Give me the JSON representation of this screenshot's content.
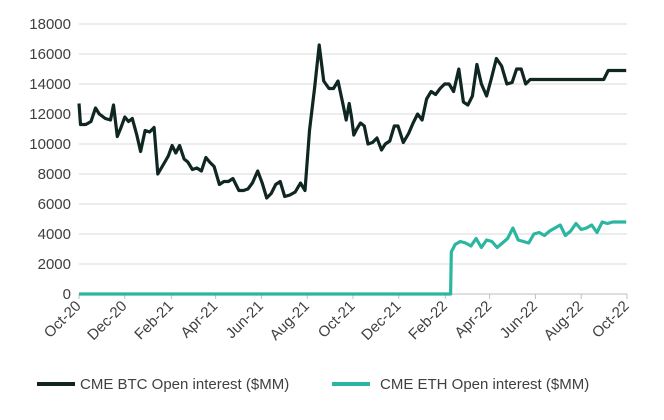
{
  "chart_data": {
    "type": "line",
    "title": "",
    "xlabel": "",
    "ylabel": "",
    "ylim": [
      0,
      18000
    ],
    "yticks": [
      0,
      2000,
      4000,
      6000,
      8000,
      10000,
      12000,
      14000,
      16000,
      18000
    ],
    "ytick_labels": [
      "0",
      "2000",
      "4000",
      "6000",
      "8000",
      "10000",
      "12000",
      "14000",
      "16000",
      "18000"
    ],
    "xlim": [
      "2020-10-01",
      "2022-10-01"
    ],
    "xticks": [
      "2020-10-01",
      "2020-12-01",
      "2021-02-01",
      "2021-04-01",
      "2021-06-01",
      "2021-08-01",
      "2021-10-01",
      "2021-12-01",
      "2022-02-01",
      "2022-04-01",
      "2022-06-01",
      "2022-08-01",
      "2022-10-01"
    ],
    "xtick_labels": [
      "Oct-20",
      "Dec-20",
      "Feb-21",
      "Apr-21",
      "Jun-21",
      "Aug-21",
      "Oct-21",
      "Dec-21",
      "Feb-22",
      "Apr-22",
      "Jun-22",
      "Aug-22",
      "Oct-22"
    ],
    "grid": "horizontal",
    "legend_position": "bottom",
    "series": [
      {
        "name": "CME BTC Open interest ($MM)",
        "color": "#0f2622",
        "x": [
          "2020-10-01",
          "2020-10-03",
          "2020-10-10",
          "2020-10-17",
          "2020-10-23",
          "2020-10-28",
          "2020-11-05",
          "2020-11-12",
          "2020-11-16",
          "2020-11-21",
          "2020-11-26",
          "2020-12-01",
          "2020-12-06",
          "2020-12-11",
          "2020-12-17",
          "2020-12-22",
          "2020-12-28",
          "2021-01-03",
          "2021-01-09",
          "2021-01-14",
          "2021-01-21",
          "2021-01-28",
          "2021-02-02",
          "2021-02-07",
          "2021-02-12",
          "2021-02-18",
          "2021-02-23",
          "2021-03-01",
          "2021-03-07",
          "2021-03-13",
          "2021-03-19",
          "2021-03-24",
          "2021-03-30",
          "2021-04-06",
          "2021-04-12",
          "2021-04-18",
          "2021-04-24",
          "2021-05-02",
          "2021-05-08",
          "2021-05-14",
          "2021-05-20",
          "2021-05-27",
          "2021-06-02",
          "2021-06-08",
          "2021-06-14",
          "2021-06-20",
          "2021-06-26",
          "2021-07-02",
          "2021-07-09",
          "2021-07-16",
          "2021-07-23",
          "2021-07-29",
          "2021-08-04",
          "2021-08-11",
          "2021-08-17",
          "2021-08-23",
          "2021-08-30",
          "2021-09-05",
          "2021-09-11",
          "2021-09-17",
          "2021-09-22",
          "2021-09-26",
          "2021-09-29",
          "2021-10-02",
          "2021-10-06",
          "2021-10-11",
          "2021-10-16",
          "2021-10-21",
          "2021-10-27",
          "2021-11-02",
          "2021-11-08",
          "2021-11-13",
          "2021-11-19",
          "2021-11-25",
          "2021-11-30",
          "2021-12-07",
          "2021-12-14",
          "2021-12-20",
          "2021-12-26",
          "2022-01-01",
          "2022-01-07",
          "2022-01-13",
          "2022-01-19",
          "2022-01-25",
          "2022-01-31",
          "2022-02-06",
          "2022-02-12",
          "2022-02-19",
          "2022-02-25",
          "2022-03-03",
          "2022-03-09",
          "2022-03-15",
          "2022-03-21",
          "2022-03-28",
          "2022-04-03",
          "2022-04-10",
          "2022-04-17",
          "2022-04-24",
          "2022-05-01",
          "2022-05-07",
          "2022-05-13",
          "2022-05-19",
          "2022-05-25",
          "2022-05-31",
          "2022-06-06",
          "2022-06-12",
          "2022-06-18",
          "2022-06-24",
          "2022-06-30",
          "2022-07-06",
          "2022-07-12",
          "2022-07-18",
          "2022-07-24",
          "2022-07-31",
          "2022-08-06",
          "2022-08-13",
          "2022-08-19",
          "2022-08-25",
          "2022-08-31",
          "2022-09-06",
          "2022-09-12",
          "2022-09-18",
          "2022-09-24",
          "2022-09-30"
        ],
        "values": [
          12700,
          11300,
          11300,
          11500,
          12400,
          12000,
          11700,
          11600,
          12600,
          10500,
          11100,
          11800,
          11500,
          11700,
          10600,
          9500,
          10900,
          10800,
          11100,
          8000,
          8600,
          9200,
          9900,
          9400,
          9900,
          9000,
          8800,
          8300,
          8400,
          8200,
          9100,
          8800,
          8500,
          7300,
          7500,
          7500,
          7700,
          6900,
          6900,
          7000,
          7400,
          8200,
          7400,
          6400,
          6700,
          7300,
          7500,
          6500,
          6600,
          6800,
          7400,
          6900,
          10900,
          13800,
          16600,
          14200,
          13700,
          13700,
          14200,
          12800,
          11600,
          12700,
          11800,
          10600,
          11000,
          11400,
          11200,
          10000,
          10100,
          10400,
          9600,
          10000,
          10200,
          11200,
          11200,
          10100,
          10700,
          11400,
          12000,
          11600,
          13000,
          13500,
          13300,
          13700,
          14000,
          14000,
          13500,
          15000,
          12800,
          12600,
          13200,
          15300,
          14000,
          13200,
          14300,
          15700,
          15200,
          14000,
          14100,
          15000,
          15000,
          14000,
          14300,
          14300,
          14300,
          14300,
          14300,
          14300,
          14300,
          14300,
          14300,
          14300,
          14300,
          14300,
          14300,
          14300,
          14300,
          14300,
          14300,
          14900,
          14900,
          14900,
          14900,
          14900
        ],
        "dashed": false
      },
      {
        "name": "CME ETH Open interest ($MM)",
        "color": "#2bb6a1",
        "x": [
          "2020-10-01",
          "2022-02-08",
          "2022-02-09",
          "2022-02-14",
          "2022-02-21",
          "2022-02-28",
          "2022-03-07",
          "2022-03-14",
          "2022-03-21",
          "2022-03-28",
          "2022-04-04",
          "2022-04-11",
          "2022-04-18",
          "2022-04-25",
          "2022-05-02",
          "2022-05-09",
          "2022-05-16",
          "2022-05-23",
          "2022-05-30",
          "2022-06-06",
          "2022-06-13",
          "2022-06-20",
          "2022-06-27",
          "2022-07-04",
          "2022-07-11",
          "2022-07-18",
          "2022-07-25",
          "2022-08-01",
          "2022-08-08",
          "2022-08-15",
          "2022-08-22",
          "2022-08-29",
          "2022-09-05",
          "2022-09-12",
          "2022-09-19",
          "2022-09-26",
          "2022-09-30"
        ],
        "values": [
          0,
          0,
          2800,
          3300,
          3500,
          3400,
          3200,
          3700,
          3100,
          3600,
          3500,
          3100,
          3400,
          3700,
          4400,
          3600,
          3500,
          3400,
          4000,
          4100,
          3900,
          4200,
          4400,
          4600,
          3900,
          4200,
          4700,
          4300,
          4400,
          4600,
          4100,
          4800,
          4700,
          4800,
          4800,
          4800,
          4800
        ],
        "dashed": false
      }
    ]
  }
}
